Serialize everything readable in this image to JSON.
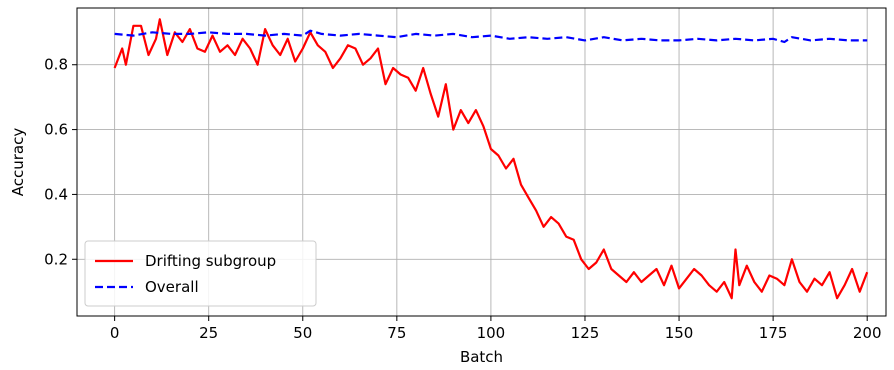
{
  "chart_data": {
    "type": "line",
    "xlabel": "Batch",
    "ylabel": "Accuracy",
    "xlim": [
      -10,
      205
    ],
    "ylim": [
      0.025,
      0.975
    ],
    "xticks": [
      0,
      25,
      50,
      75,
      100,
      125,
      150,
      175,
      200
    ],
    "yticks": [
      0.2,
      0.4,
      0.6,
      0.8
    ],
    "xtick_labels": [
      "0",
      "25",
      "50",
      "75",
      "100",
      "125",
      "150",
      "175",
      "200"
    ],
    "ytick_labels": [
      "0.2",
      "0.4",
      "0.6",
      "0.8"
    ],
    "grid": true,
    "legend_position": "lower-left",
    "series": [
      {
        "name": "Drifting subgroup",
        "color": "#ff0000",
        "style": "solid",
        "x": [
          0,
          2,
          3,
          5,
          7,
          9,
          11,
          12,
          14,
          16,
          18,
          20,
          22,
          24,
          26,
          28,
          30,
          32,
          34,
          36,
          38,
          40,
          42,
          44,
          46,
          48,
          50,
          52,
          54,
          56,
          58,
          60,
          62,
          64,
          66,
          68,
          70,
          72,
          74,
          76,
          78,
          80,
          82,
          84,
          86,
          88,
          90,
          92,
          94,
          96,
          98,
          100,
          102,
          104,
          106,
          108,
          110,
          112,
          114,
          116,
          118,
          120,
          122,
          124,
          126,
          128,
          130,
          132,
          134,
          136,
          138,
          140,
          142,
          144,
          146,
          148,
          150,
          152,
          154,
          156,
          158,
          160,
          162,
          164,
          165,
          166,
          168,
          170,
          172,
          174,
          176,
          178,
          180,
          182,
          184,
          186,
          188,
          190,
          192,
          194,
          196,
          198,
          200
        ],
        "y": [
          0.79,
          0.85,
          0.8,
          0.92,
          0.92,
          0.83,
          0.88,
          0.94,
          0.83,
          0.9,
          0.87,
          0.91,
          0.85,
          0.84,
          0.89,
          0.84,
          0.86,
          0.83,
          0.88,
          0.85,
          0.8,
          0.91,
          0.86,
          0.83,
          0.88,
          0.81,
          0.85,
          0.9,
          0.86,
          0.84,
          0.79,
          0.82,
          0.86,
          0.85,
          0.8,
          0.82,
          0.85,
          0.74,
          0.79,
          0.77,
          0.76,
          0.72,
          0.79,
          0.71,
          0.64,
          0.74,
          0.6,
          0.66,
          0.62,
          0.66,
          0.61,
          0.54,
          0.52,
          0.48,
          0.51,
          0.43,
          0.39,
          0.35,
          0.3,
          0.33,
          0.31,
          0.27,
          0.26,
          0.2,
          0.17,
          0.19,
          0.23,
          0.17,
          0.15,
          0.13,
          0.16,
          0.13,
          0.15,
          0.17,
          0.12,
          0.18,
          0.11,
          0.14,
          0.17,
          0.15,
          0.12,
          0.1,
          0.13,
          0.08,
          0.23,
          0.12,
          0.18,
          0.13,
          0.1,
          0.15,
          0.14,
          0.12,
          0.2,
          0.13,
          0.1,
          0.14,
          0.12,
          0.16,
          0.08,
          0.12,
          0.17,
          0.1,
          0.16
        ]
      },
      {
        "name": "Overall",
        "color": "#0000ff",
        "style": "dashed",
        "x": [
          0,
          5,
          10,
          15,
          20,
          25,
          30,
          35,
          40,
          45,
          50,
          52,
          55,
          60,
          65,
          70,
          75,
          80,
          85,
          90,
          95,
          100,
          105,
          110,
          115,
          120,
          125,
          130,
          135,
          140,
          145,
          150,
          155,
          160,
          165,
          170,
          175,
          178,
          180,
          185,
          190,
          195,
          200
        ],
        "y": [
          0.895,
          0.89,
          0.9,
          0.895,
          0.895,
          0.9,
          0.895,
          0.895,
          0.89,
          0.895,
          0.89,
          0.905,
          0.895,
          0.89,
          0.895,
          0.89,
          0.885,
          0.895,
          0.89,
          0.895,
          0.885,
          0.89,
          0.88,
          0.885,
          0.88,
          0.885,
          0.875,
          0.885,
          0.875,
          0.88,
          0.875,
          0.875,
          0.88,
          0.875,
          0.88,
          0.875,
          0.88,
          0.87,
          0.885,
          0.875,
          0.88,
          0.875,
          0.875
        ]
      }
    ]
  }
}
